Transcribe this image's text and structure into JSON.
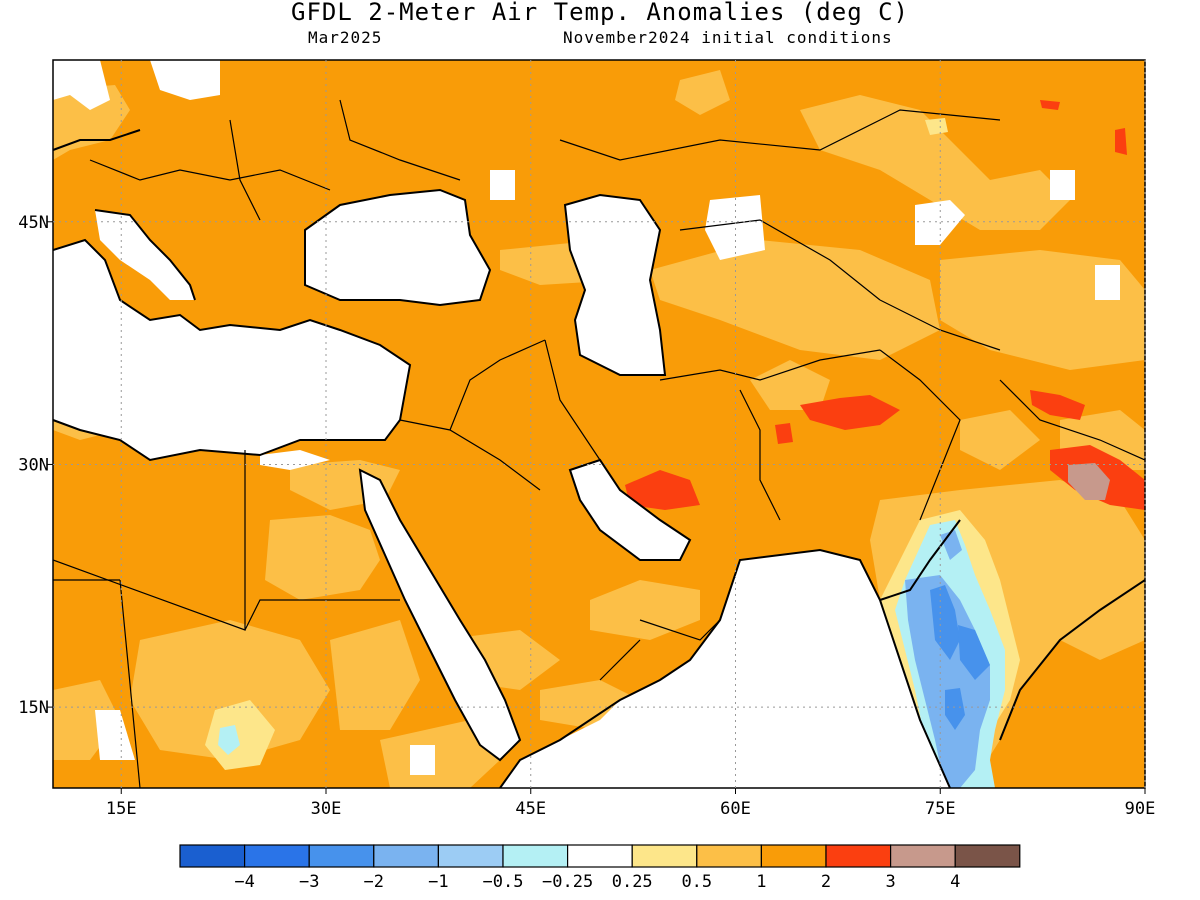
{
  "title": "GFDL 2-Meter Air Temp. Anomalies (deg C)",
  "valid_month": "Mar2025",
  "init_conditions": "November2024 initial conditions",
  "map": {
    "lon_range": [
      10,
      90
    ],
    "lat_range": [
      10,
      55
    ],
    "lon_ticks": [
      {
        "value": 15,
        "label": "15E"
      },
      {
        "value": 30,
        "label": "30E"
      },
      {
        "value": 45,
        "label": "45E"
      },
      {
        "value": 60,
        "label": "60E"
      },
      {
        "value": 75,
        "label": "75E"
      },
      {
        "value": 90,
        "label": "90E"
      }
    ],
    "lat_ticks": [
      {
        "value": 45,
        "label": "45N"
      },
      {
        "value": 30,
        "label": "30N"
      },
      {
        "value": 15,
        "label": "15N"
      }
    ]
  },
  "colorbar": {
    "colors": [
      "#1a5fd0",
      "#2a74e8",
      "#4792ec",
      "#7ab3f0",
      "#9cccf4",
      "#b4f0f4",
      "#ffffff",
      "#fde68a",
      "#fcbf47",
      "#f99c08",
      "#fb3f10",
      "#c7998c",
      "#7a5448"
    ],
    "labels": [
      "−4",
      "−3",
      "−2",
      "−1",
      "−0.5",
      "−0.25",
      "0.25",
      "0.5",
      "1",
      "2",
      "3",
      "4"
    ]
  },
  "anomaly_colors": {
    "land_default": "#f99c08",
    "mild": "#fcbf47",
    "weak": "#fde68a",
    "hot": "#fb3f10",
    "very_hot": "#c7998c",
    "cold": "#7ab3f0",
    "colder": "#4792ec",
    "cool": "#b4f0f4",
    "neutral": "#ffffff"
  }
}
